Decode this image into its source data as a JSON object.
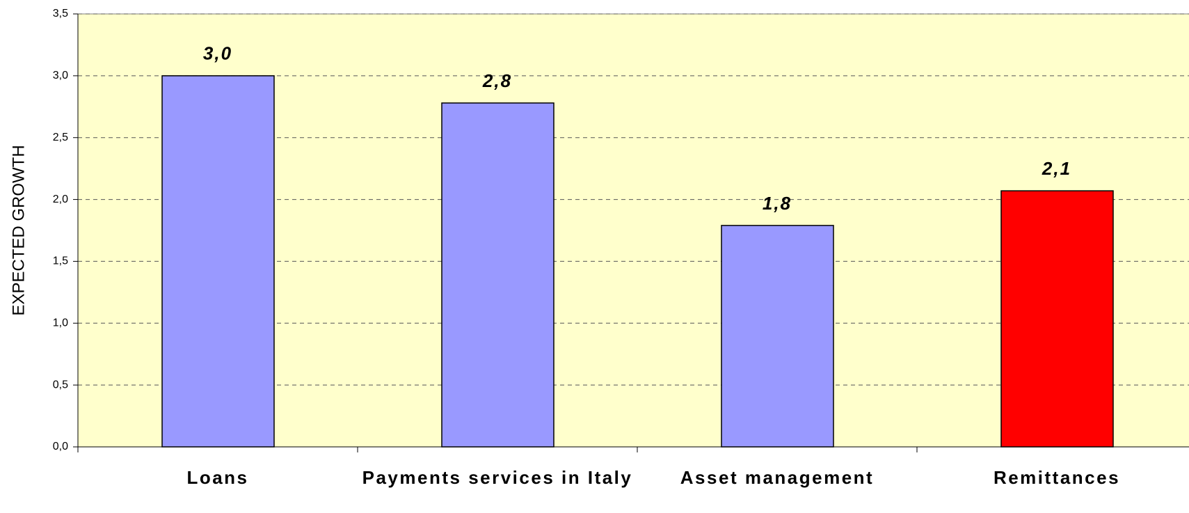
{
  "chart_data": {
    "type": "bar",
    "y_label": "EXPECTED GROWTH",
    "categories": [
      "Loans",
      "Payments services in Italy",
      "Asset management",
      "Remittances"
    ],
    "values": [
      3.0,
      2.78,
      1.79,
      2.07
    ],
    "value_labels": [
      "3,0",
      "2,8",
      "1,8",
      "2,1"
    ],
    "colors": [
      "#9999ff",
      "#9999ff",
      "#9999ff",
      "#ff0000"
    ],
    "ylim": [
      0,
      3.5
    ],
    "yticks": [
      {
        "value": 0,
        "label": "0,0"
      },
      {
        "value": 0.5,
        "label": "0,5"
      },
      {
        "value": 1,
        "label": "1,0"
      },
      {
        "value": 1.5,
        "label": "1,5"
      },
      {
        "value": 2,
        "label": "2,0"
      },
      {
        "value": 2.5,
        "label": "2,5"
      },
      {
        "value": 3,
        "label": "3,0"
      },
      {
        "value": 3.5,
        "label": "3,5"
      }
    ],
    "grid": true
  }
}
